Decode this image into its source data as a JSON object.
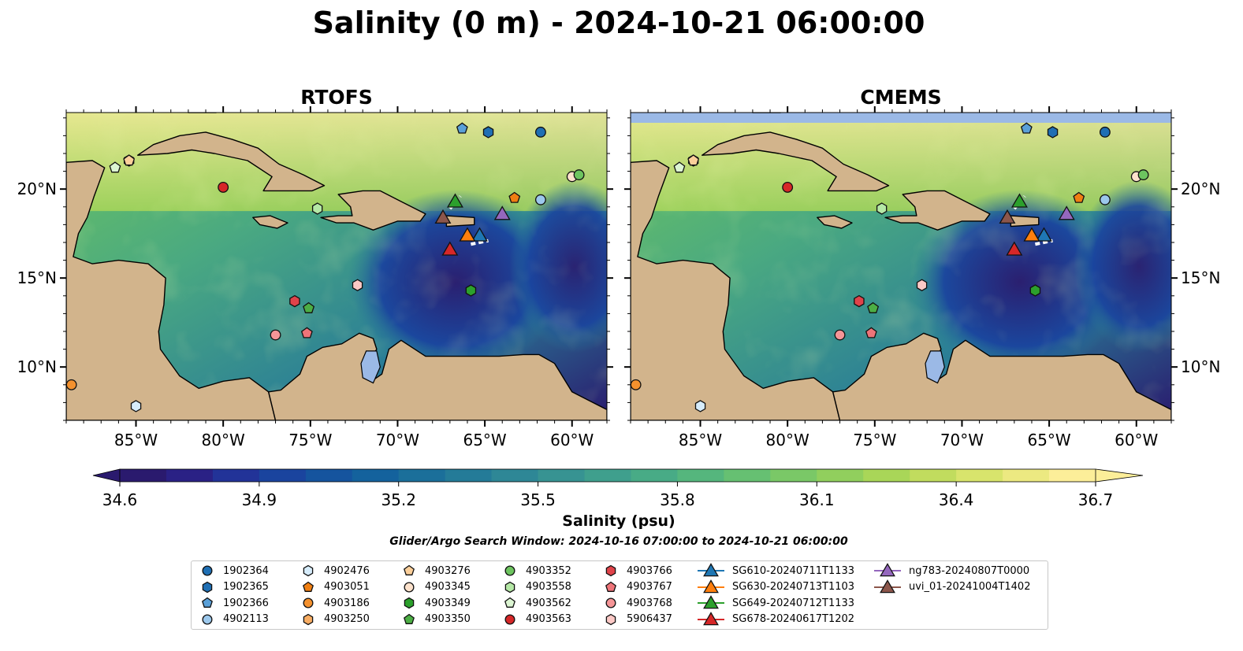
{
  "title": "Salinity (0 m) - 2024-10-21 06:00:00",
  "panels": [
    {
      "title": "RTOFS"
    },
    {
      "title": "CMEMS"
    }
  ],
  "axes": {
    "lon_ticks": [
      "85°W",
      "80°W",
      "75°W",
      "70°W",
      "65°W",
      "60°W"
    ],
    "lat_ticks": [
      "20°N",
      "15°N",
      "10°N"
    ]
  },
  "colorbar": {
    "label": "Salinity (psu)",
    "ticks": [
      "34.6",
      "34.9",
      "35.2",
      "35.5",
      "35.8",
      "36.1",
      "36.4",
      "36.7"
    ],
    "min": 34.6,
    "max": 36.7,
    "extend": "both",
    "colormap": "haline",
    "colors": [
      "#2a1a6e",
      "#2a2185",
      "#223398",
      "#1a449e",
      "#15549e",
      "#14629d",
      "#1b6f9a",
      "#247b98",
      "#2e8796",
      "#379392",
      "#3f9f8d",
      "#48ab86",
      "#55b67d",
      "#66c072",
      "#7ac867",
      "#91cf5d",
      "#a9d658",
      "#c1dc5e",
      "#d8e46c",
      "#ece981",
      "#fcee99"
    ]
  },
  "subtitle": "Glider/Argo Search Window: 2024-10-16 07:00:00 to 2024-10-21 06:00:00",
  "colors": {
    "land": "#d2b48c",
    "lake": "#9bb9e6",
    "ocean_deep": "#2a1a6e",
    "no_data": "#9bb9e6"
  },
  "legend": [
    {
      "label": "1902364",
      "marker": "circle",
      "color": "#1f6fb4"
    },
    {
      "label": "1902365",
      "marker": "hexagon",
      "color": "#1f6fb4"
    },
    {
      "label": "1902366",
      "marker": "pentagon",
      "color": "#5aa0d8"
    },
    {
      "label": "4902113",
      "marker": "circle",
      "color": "#9cc8ec"
    },
    {
      "label": "4902476",
      "marker": "hexagon",
      "color": "#d6ecfb"
    },
    {
      "label": "4903051",
      "marker": "pentagon",
      "color": "#f07f12"
    },
    {
      "label": "4903186",
      "marker": "circle",
      "color": "#f4912e"
    },
    {
      "label": "4903250",
      "marker": "hexagon",
      "color": "#f8ad63"
    },
    {
      "label": "4903276",
      "marker": "pentagon",
      "color": "#fbcf9a"
    },
    {
      "label": "4903345",
      "marker": "circle",
      "color": "#fde2cc"
    },
    {
      "label": "4903349",
      "marker": "hexagon",
      "color": "#2ca02c"
    },
    {
      "label": "4903350",
      "marker": "pentagon",
      "color": "#4cae44"
    },
    {
      "label": "4903352",
      "marker": "circle",
      "color": "#6dc45f"
    },
    {
      "label": "4903558",
      "marker": "hexagon",
      "color": "#b5e8a6"
    },
    {
      "label": "4903562",
      "marker": "pentagon",
      "color": "#dcf5d2"
    },
    {
      "label": "4903563",
      "marker": "circle",
      "color": "#d62728"
    },
    {
      "label": "4903766",
      "marker": "hexagon",
      "color": "#e0434a"
    },
    {
      "label": "4903767",
      "marker": "pentagon",
      "color": "#ee7479"
    },
    {
      "label": "4903768",
      "marker": "circle",
      "color": "#f59597"
    },
    {
      "label": "5906437",
      "marker": "hexagon",
      "color": "#fcc9c6"
    },
    {
      "label": "SG610-20240711T1133",
      "marker": "triangle",
      "color": "#1f77b4",
      "line": "#1f77b4"
    },
    {
      "label": "SG630-20240713T1103",
      "marker": "triangle",
      "color": "#ff7f0e",
      "line": "#ff7f0e"
    },
    {
      "label": "SG649-20240712T1133",
      "marker": "triangle",
      "color": "#2ca02c",
      "line": "#2ca02c"
    },
    {
      "label": "SG678-20240617T1202",
      "marker": "triangle",
      "color": "#d62728",
      "line": "#d62728"
    },
    {
      "label": "ng783-20240807T0000",
      "marker": "triangle",
      "color": "#9467bd",
      "line": "#9467bd"
    },
    {
      "label": "uvi_01-20241004T1402",
      "marker": "triangle",
      "color": "#8c564b",
      "line": "#8c564b"
    }
  ],
  "platforms": [
    {
      "id": "1902364",
      "lon": -61.8,
      "lat": 23.2
    },
    {
      "id": "1902365",
      "lon": -64.8,
      "lat": 23.2
    },
    {
      "id": "1902366",
      "lon": -66.3,
      "lat": 23.4
    },
    {
      "id": "4902113",
      "lon": -61.8,
      "lat": 19.4
    },
    {
      "id": "4902476",
      "lon": -85.0,
      "lat": 7.8
    },
    {
      "id": "4903051",
      "lon": -63.3,
      "lat": 19.5
    },
    {
      "id": "4903186",
      "lon": -88.7,
      "lat": 9.0
    },
    {
      "id": "4903250",
      "lon": -85.4,
      "lat": 21.6
    },
    {
      "id": "4903276",
      "lon": -85.4,
      "lat": 21.6
    },
    {
      "id": "4903345",
      "lon": -60.0,
      "lat": 20.7
    },
    {
      "id": "4903349",
      "lon": -65.8,
      "lat": 14.3
    },
    {
      "id": "4903350",
      "lon": -75.1,
      "lat": 13.3
    },
    {
      "id": "4903352",
      "lon": -59.6,
      "lat": 20.8
    },
    {
      "id": "4903558",
      "lon": -74.6,
      "lat": 18.9
    },
    {
      "id": "4903562",
      "lon": -86.2,
      "lat": 21.2
    },
    {
      "id": "4903563",
      "lon": -80.0,
      "lat": 20.1
    },
    {
      "id": "4903766",
      "lon": -75.9,
      "lat": 13.7
    },
    {
      "id": "4903767",
      "lon": -75.2,
      "lat": 11.9
    },
    {
      "id": "4903768",
      "lon": -77.0,
      "lat": 11.8
    },
    {
      "id": "5906437",
      "lon": -72.3,
      "lat": 14.6
    }
  ],
  "gliders": [
    {
      "id": "SG610-20240711T1133",
      "lon": -65.3,
      "lat": 17.4
    },
    {
      "id": "SG630-20240713T1103",
      "lon": -66.0,
      "lat": 17.4
    },
    {
      "id": "SG649-20240712T1133",
      "lon": -66.7,
      "lat": 19.3
    },
    {
      "id": "SG678-20240617T1202",
      "lon": -67.0,
      "lat": 16.6
    },
    {
      "id": "ng783-20240807T0000",
      "lon": -64.0,
      "lat": 18.6
    },
    {
      "id": "uvi_01-20241004T1402",
      "lon": -67.4,
      "lat": 18.4
    }
  ]
}
